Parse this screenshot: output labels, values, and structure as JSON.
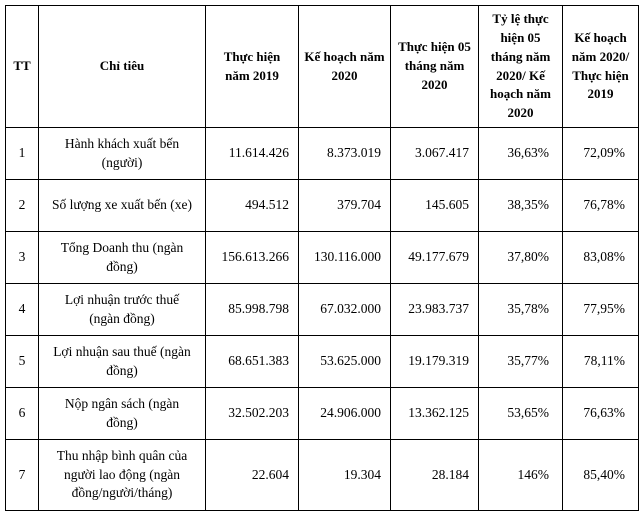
{
  "table": {
    "headers": [
      "TT",
      "Chỉ tiêu",
      "Thực hiện năm 2019",
      "Kế hoạch năm 2020",
      "Thực hiện 05 tháng năm 2020",
      "Tỷ lệ thực hiện 05 tháng năm 2020/ Kế hoạch năm 2020",
      "Kế hoạch năm 2020/ Thực hiện 2019"
    ],
    "rows": [
      {
        "tt": "1",
        "label": "Hành khách xuất bến (người)",
        "v2019": "11.614.426",
        "plan2020": "8.373.019",
        "act5m2020": "3.067.417",
        "ratio_plan": "36,63%",
        "ratio_2019": "72,09%"
      },
      {
        "tt": "2",
        "label": "Số lượng xe xuất bến (xe)",
        "v2019": "494.512",
        "plan2020": "379.704",
        "act5m2020": "145.605",
        "ratio_plan": "38,35%",
        "ratio_2019": "76,78%"
      },
      {
        "tt": "3",
        "label": "Tổng Doanh thu (ngàn đồng)",
        "v2019": "156.613.266",
        "plan2020": "130.116.000",
        "act5m2020": "49.177.679",
        "ratio_plan": "37,80%",
        "ratio_2019": "83,08%"
      },
      {
        "tt": "4",
        "label": "Lợi nhuận trước thuế (ngàn đồng)",
        "v2019": "85.998.798",
        "plan2020": "67.032.000",
        "act5m2020": "23.983.737",
        "ratio_plan": "35,78%",
        "ratio_2019": "77,95%"
      },
      {
        "tt": "5",
        "label": "Lợi nhuận sau thuế (ngàn đồng)",
        "v2019": "68.651.383",
        "plan2020": "53.625.000",
        "act5m2020": "19.179.319",
        "ratio_plan": "35,77%",
        "ratio_2019": "78,11%"
      },
      {
        "tt": "6",
        "label": "Nộp ngân sách (ngàn đồng)",
        "v2019": "32.502.203",
        "plan2020": "24.906.000",
        "act5m2020": "13.362.125",
        "ratio_plan": "53,65%",
        "ratio_2019": "76,63%"
      },
      {
        "tt": "7",
        "label": "Thu nhập bình quân của người lao động (ngàn đồng/người/tháng)",
        "v2019": "22.604",
        "plan2020": "19.304",
        "act5m2020": "28.184",
        "ratio_plan": "146%",
        "ratio_2019": "85,40%"
      }
    ]
  }
}
